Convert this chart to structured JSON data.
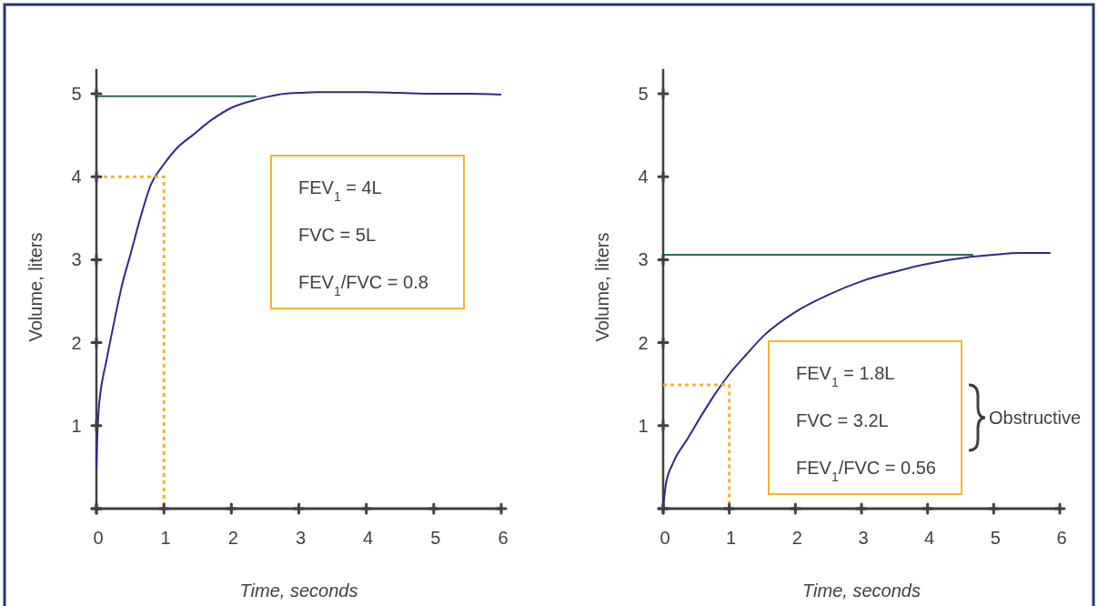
{
  "chart_data": [
    {
      "type": "line",
      "xlabel": "Time, seconds",
      "ylabel": "Volume, liters",
      "xlim": [
        0,
        6
      ],
      "ylim": [
        0,
        5.3
      ],
      "xticks": [
        0,
        1,
        2,
        3,
        4,
        5,
        6
      ],
      "yticks": [
        1,
        2,
        3,
        4,
        5
      ],
      "annotations": [
        "FEV$_{1}$ = 4L",
        "FVC = 5L",
        "FEV$_{1}$/FVC = 0.8"
      ],
      "series": [
        {
          "color": "#2e2a87",
          "x": [
            0,
            0.01,
            0.03,
            0.06,
            0.1,
            0.14,
            0.2,
            0.3,
            0.39,
            0.5,
            0.65,
            0.81,
            1,
            1.2,
            1.44,
            1.7,
            2,
            2.37,
            2.7,
            3,
            3.27,
            3.6,
            4,
            4.5,
            5,
            5.5,
            6
          ],
          "values": [
            0.5,
            0.8,
            1.15,
            1.4,
            1.6,
            1.75,
            2.0,
            2.4,
            2.73,
            3.05,
            3.5,
            3.91,
            4.15,
            4.35,
            4.51,
            4.68,
            4.83,
            4.93,
            4.99,
            5.01,
            5.02,
            5.02,
            5.02,
            5.01,
            5.0,
            5.0,
            4.99
          ]
        },
        {
          "color": "#2d6a55",
          "x": [
            0,
            2.37
          ],
          "values": [
            4.97,
            4.97
          ]
        },
        {
          "color": "#f5b325",
          "line_style": "dotted",
          "x": [
            0,
            1,
            1
          ],
          "values": [
            4,
            4,
            0
          ]
        }
      ]
    },
    {
      "type": "line",
      "xlabel": "Time, seconds",
      "ylabel": "Volume, liters",
      "xlim": [
        0,
        6
      ],
      "ylim": [
        0,
        5.3
      ],
      "xticks": [
        0,
        1,
        2,
        3,
        4,
        5,
        6
      ],
      "yticks": [
        1,
        2,
        3,
        4,
        5
      ],
      "annotations": [
        "FEV$_{1}$ = 1.8L",
        "FVC = 3.2L",
        "FEV$_{1}$/FVC = 0.56",
        "Obstructive"
      ],
      "series": [
        {
          "color": "#2e2a87",
          "x": [
            0,
            0.04,
            0.15,
            0.36,
            0.6,
            0.8,
            1,
            1.25,
            1.53,
            2,
            2.48,
            3,
            3.53,
            4,
            4.6,
            5,
            5.4,
            5.86
          ],
          "values": [
            0,
            0.29,
            0.55,
            0.83,
            1.15,
            1.4,
            1.62,
            1.85,
            2.09,
            2.37,
            2.57,
            2.74,
            2.86,
            2.95,
            3.03,
            3.06,
            3.08,
            3.08
          ]
        },
        {
          "color": "#2d6a55",
          "x": [
            0,
            4.69
          ],
          "values": [
            3.06,
            3.06
          ]
        },
        {
          "color": "#f5b325",
          "line_style": "dotted",
          "x": [
            0,
            1,
            1
          ],
          "values": [
            1.49,
            1.49,
            0
          ]
        }
      ]
    }
  ]
}
